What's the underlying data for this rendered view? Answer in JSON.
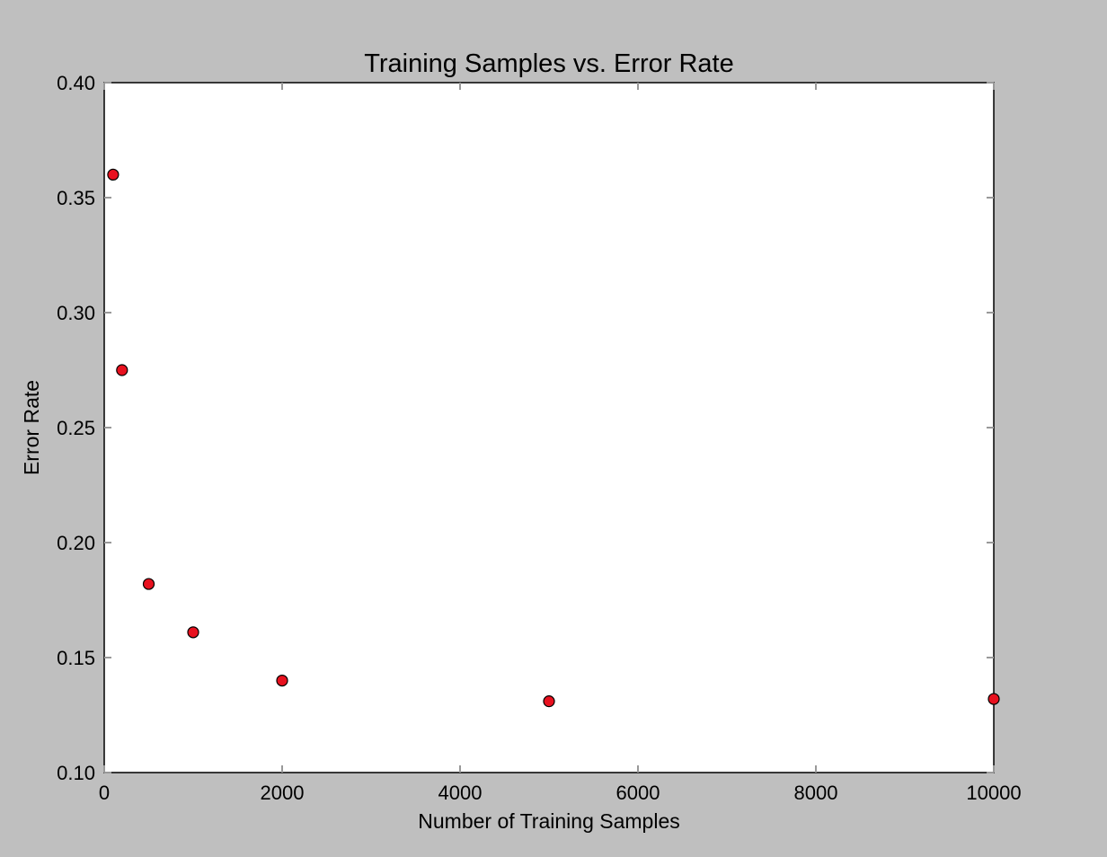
{
  "chart_data": {
    "type": "scatter",
    "title": "Training Samples vs. Error Rate",
    "xlabel": "Number of Training Samples",
    "ylabel": "Error Rate",
    "xlim": [
      0,
      10000
    ],
    "ylim": [
      0.1,
      0.4
    ],
    "x_ticks": [
      "0",
      "2000",
      "4000",
      "6000",
      "8000",
      "10000"
    ],
    "y_ticks": [
      "0.10",
      "0.15",
      "0.20",
      "0.25",
      "0.30",
      "0.35",
      "0.40"
    ],
    "grid": false,
    "legend": "none",
    "marker_color": "#e8111f",
    "marker_edge_color": "#000000",
    "background_color": "#bfbfbf",
    "plot_background_color": "#ffffff",
    "points": [
      {
        "x": 100,
        "y": 0.36
      },
      {
        "x": 200,
        "y": 0.275
      },
      {
        "x": 500,
        "y": 0.182
      },
      {
        "x": 1000,
        "y": 0.161
      },
      {
        "x": 2000,
        "y": 0.14
      },
      {
        "x": 5000,
        "y": 0.131
      },
      {
        "x": 10000,
        "y": 0.132
      }
    ]
  }
}
